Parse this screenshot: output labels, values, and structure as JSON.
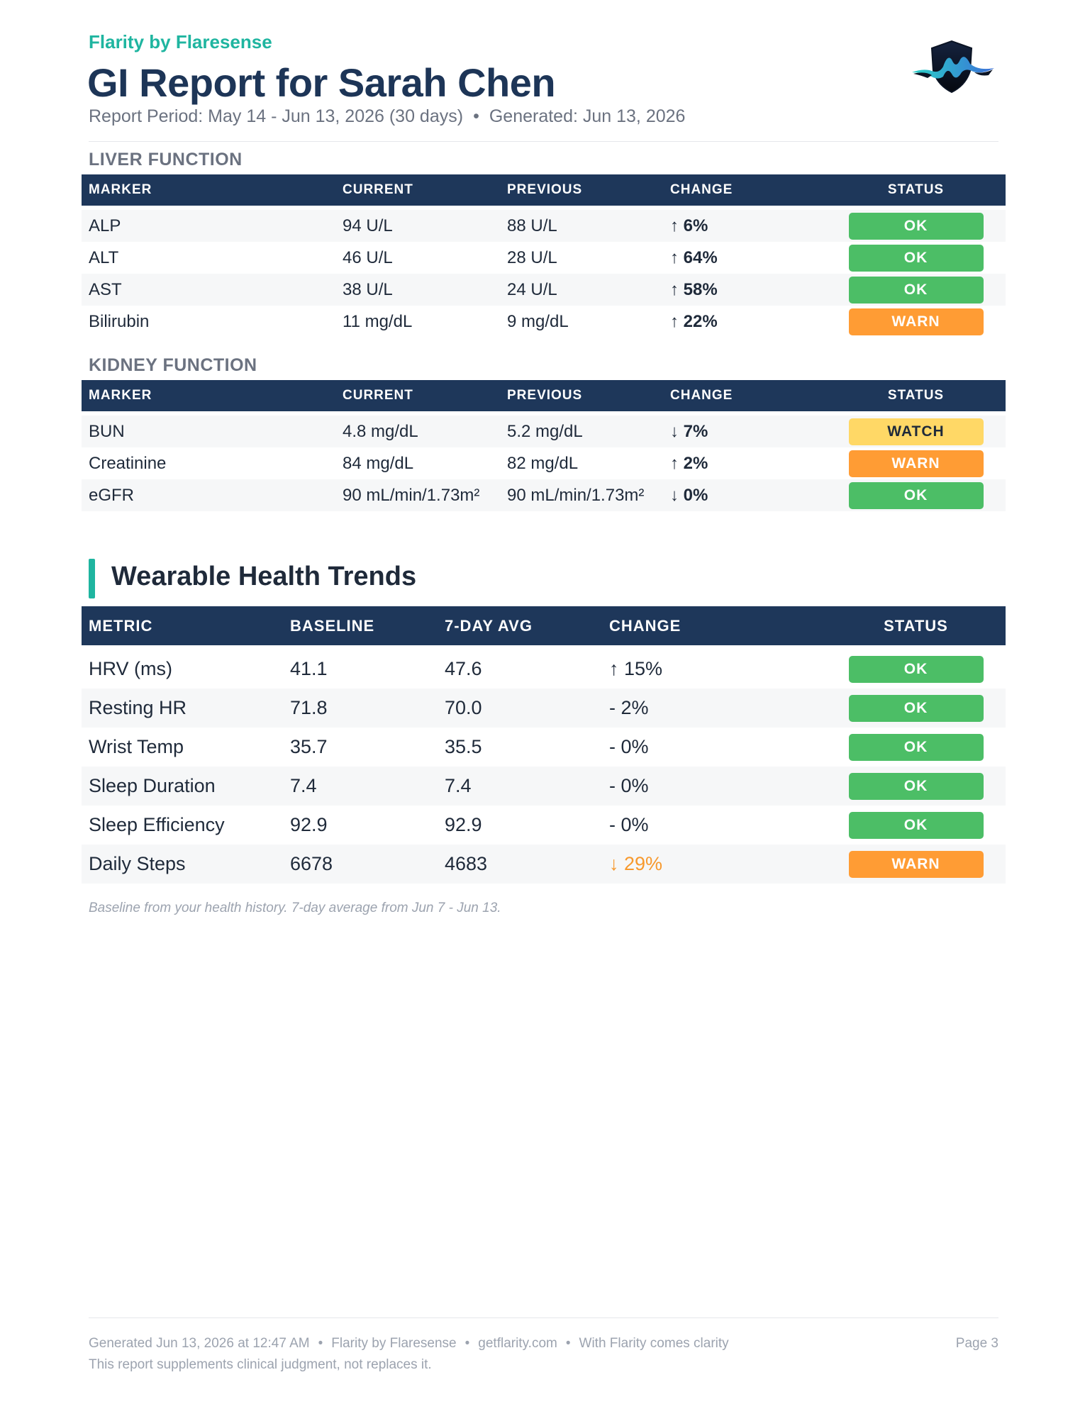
{
  "header": {
    "brand": "Flarity by Flaresense",
    "title": "GI Report for Sarah Chen",
    "report_period": "Report Period: May 14 - Jun 13, 2026 (30 days)",
    "separator": "•",
    "generated": "Generated: Jun 13, 2026",
    "logo_icon": "shield-wave-logo"
  },
  "colors": {
    "brand": "#1fb5a0",
    "header_bg": "#1e375a",
    "ok": "#4cbe66",
    "warn": "#ff9c34",
    "watch": "#ffd866"
  },
  "liver": {
    "label": "LIVER FUNCTION",
    "columns": [
      "MARKER",
      "CURRENT",
      "PREVIOUS",
      "CHANGE",
      "STATUS"
    ],
    "rows": [
      {
        "marker": "ALP",
        "current": "94 U/L",
        "previous": "88 U/L",
        "change": "↑ 6%",
        "status": "OK"
      },
      {
        "marker": "ALT",
        "current": "46 U/L",
        "previous": "28 U/L",
        "change": "↑ 64%",
        "status": "OK"
      },
      {
        "marker": "AST",
        "current": "38 U/L",
        "previous": "24 U/L",
        "change": "↑ 58%",
        "status": "OK"
      },
      {
        "marker": "Bilirubin",
        "current": "11 mg/dL",
        "previous": "9 mg/dL",
        "change": "↑ 22%",
        "status": "WARN"
      }
    ]
  },
  "kidney": {
    "label": "KIDNEY FUNCTION",
    "columns": [
      "MARKER",
      "CURRENT",
      "PREVIOUS",
      "CHANGE",
      "STATUS"
    ],
    "rows": [
      {
        "marker": "BUN",
        "current": "4.8 mg/dL",
        "previous": "5.2 mg/dL",
        "change": "↓ 7%",
        "status": "WATCH"
      },
      {
        "marker": "Creatinine",
        "current": "84 mg/dL",
        "previous": "82 mg/dL",
        "change": "↑ 2%",
        "status": "WARN"
      },
      {
        "marker": "eGFR",
        "current": "90 mL/min/1.73m²",
        "previous": "90 mL/min/1.73m²",
        "change": "↓ 0%",
        "status": "OK"
      }
    ]
  },
  "wearable": {
    "title": "Wearable Health Trends",
    "columns": [
      "METRIC",
      "BASELINE",
      "7-DAY AVG",
      "CHANGE",
      "STATUS"
    ],
    "rows": [
      {
        "metric": "HRV (ms)",
        "baseline": "41.1",
        "avg": "47.6",
        "change": "↑ 15%",
        "status": "OK"
      },
      {
        "metric": "Resting HR",
        "baseline": "71.8",
        "avg": "70.0",
        "change": "- 2%",
        "status": "OK"
      },
      {
        "metric": "Wrist Temp",
        "baseline": "35.7",
        "avg": "35.5",
        "change": "- 0%",
        "status": "OK"
      },
      {
        "metric": "Sleep Duration",
        "baseline": "7.4",
        "avg": "7.4",
        "change": "- 0%",
        "status": "OK"
      },
      {
        "metric": "Sleep Efficiency",
        "baseline": "92.9",
        "avg": "92.9",
        "change": "- 0%",
        "status": "OK"
      },
      {
        "metric": "Daily Steps",
        "baseline": "6678",
        "avg": "4683",
        "change": "↓ 29%",
        "status": "WARN"
      }
    ],
    "footnote": "Baseline from your health history. 7-day average from Jun 7 - Jun 13."
  },
  "footer": {
    "generated": "Generated Jun 13, 2026 at 12:47 AM",
    "brand": "Flarity by Flaresense",
    "site": "getflarity.com",
    "tagline": "With Flarity comes clarity",
    "separator": "•",
    "disclaimer": "This report supplements clinical judgment, not replaces it.",
    "page": "Page 3"
  }
}
